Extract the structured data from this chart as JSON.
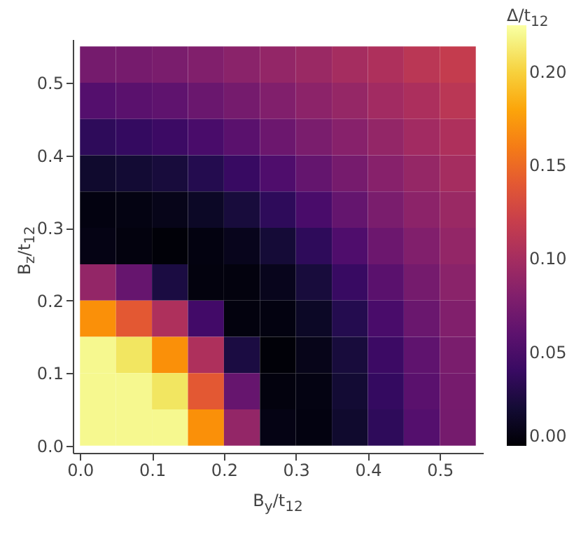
{
  "chart_data": {
    "type": "heatmap",
    "xlabel": "B$_{y}$/t$_{12}$",
    "ylabel": "B$_{z}$/t$_{12}$",
    "clabel": "Δ/t$_{12}$",
    "x": [
      0.025,
      0.075,
      0.125,
      0.175,
      0.225,
      0.275,
      0.325,
      0.375,
      0.425,
      0.475,
      0.525
    ],
    "y": [
      0.525,
      0.475,
      0.425,
      0.375,
      0.325,
      0.275,
      0.225,
      0.175,
      0.125,
      0.075,
      0.025
    ],
    "cells": [
      [
        0.073,
        0.074,
        0.076,
        0.08,
        0.085,
        0.09,
        0.094,
        0.1,
        0.105,
        0.112,
        0.118
      ],
      [
        0.055,
        0.058,
        0.061,
        0.067,
        0.073,
        0.08,
        0.086,
        0.091,
        0.098,
        0.104,
        0.112
      ],
      [
        0.035,
        0.038,
        0.042,
        0.049,
        0.058,
        0.068,
        0.076,
        0.083,
        0.09,
        0.098,
        0.105
      ],
      [
        0.018,
        0.02,
        0.023,
        0.03,
        0.04,
        0.052,
        0.064,
        0.074,
        0.083,
        0.091,
        0.1
      ],
      [
        0.006,
        0.007,
        0.01,
        0.015,
        0.023,
        0.035,
        0.049,
        0.064,
        0.076,
        0.086,
        0.094
      ],
      [
        0.008,
        0.005,
        0.002,
        0.006,
        0.011,
        0.021,
        0.035,
        0.052,
        0.068,
        0.08,
        0.09
      ],
      [
        0.09,
        0.065,
        0.025,
        0.005,
        0.005,
        0.011,
        0.023,
        0.04,
        0.058,
        0.073,
        0.085
      ],
      [
        0.17,
        0.14,
        0.105,
        0.045,
        0.005,
        0.006,
        0.015,
        0.03,
        0.049,
        0.067,
        0.08
      ],
      [
        0.22,
        0.21,
        0.17,
        0.105,
        0.025,
        0.002,
        0.01,
        0.023,
        0.042,
        0.061,
        0.076
      ],
      [
        0.22,
        0.22,
        0.21,
        0.14,
        0.065,
        0.005,
        0.007,
        0.02,
        0.038,
        0.058,
        0.074
      ],
      [
        0.22,
        0.22,
        0.22,
        0.17,
        0.09,
        0.008,
        0.006,
        0.018,
        0.035,
        0.055,
        0.073
      ]
    ],
    "xlim": [
      -0.01,
      0.56
    ],
    "ylim": [
      -0.01,
      0.56
    ],
    "xticks": [
      {
        "value": 0,
        "label": "0.0"
      },
      0.1,
      0.2,
      0.3,
      0.4,
      0.5
    ],
    "yticks": [
      {
        "value": 0,
        "label": "0.0"
      },
      0.1,
      0.2,
      0.3,
      0.4,
      0.5
    ],
    "clim": [
      0,
      0.225
    ],
    "cticks": [
      {
        "value": 0,
        "label": "0.00"
      },
      0.05,
      {
        "value": 0.1,
        "label": "0.10"
      },
      0.15,
      {
        "value": 0.2,
        "label": "0.20"
      }
    ]
  }
}
